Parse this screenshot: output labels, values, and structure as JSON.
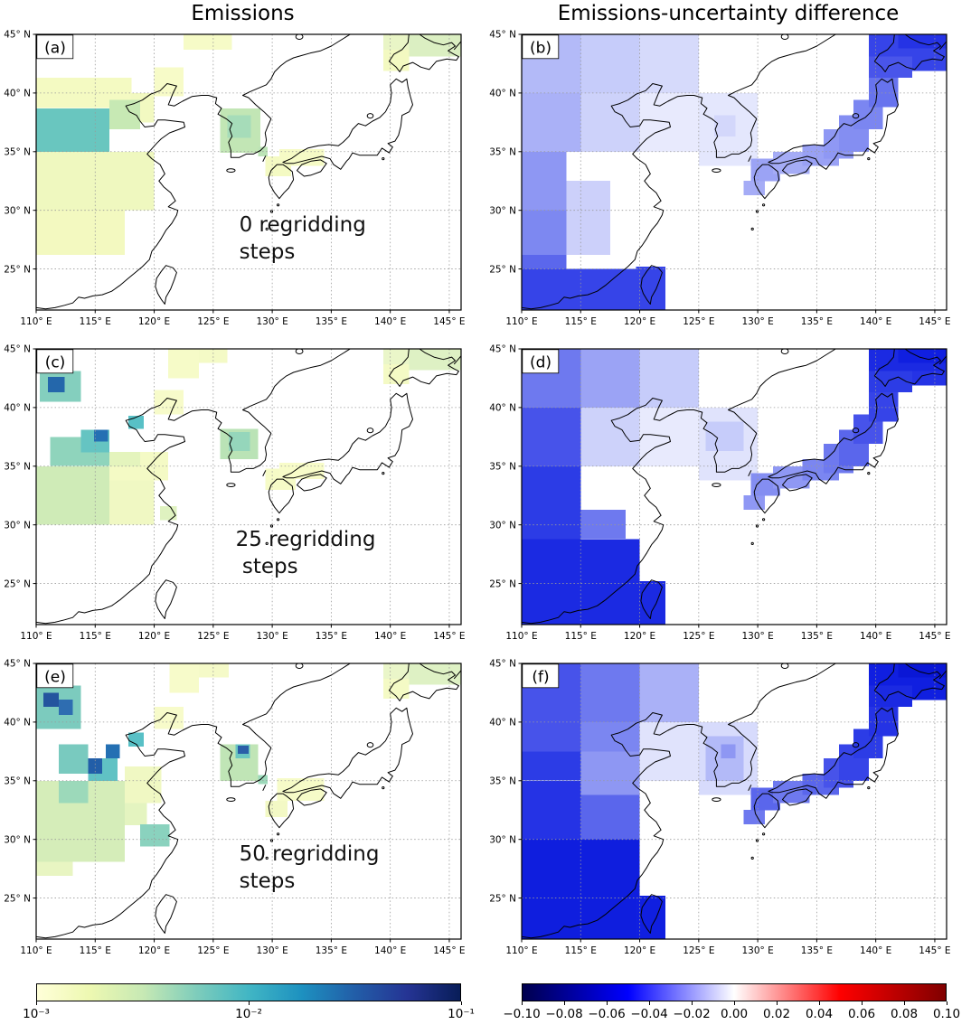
{
  "figure": {
    "titles": {
      "left": "Emissions",
      "right": "Emissions-uncertainty difference"
    }
  },
  "chart_data": {
    "type": "heatmap",
    "subtype": "geographic-gridded-maps",
    "layout": "2 columns x 3 rows of East Asia maps",
    "map_extent": {
      "lon_min": 110,
      "lon_max": 146,
      "lat_min": 21.5,
      "lat_max": 45
    },
    "lon_tick_values": [
      110,
      115,
      120,
      125,
      130,
      135,
      140,
      145
    ],
    "lon_ticks": [
      "110° E",
      "115° E",
      "120° E",
      "125° E",
      "130° E",
      "135° E",
      "140° E",
      "145° E"
    ],
    "lat_tick_values": [
      25,
      30,
      35,
      40,
      45
    ],
    "lat_ticks": [
      "25° N",
      "30° N",
      "35° N",
      "40° N",
      "45° N"
    ],
    "colorbars": {
      "emissions": {
        "scale": "log",
        "ticks": [
          "10⁻³",
          "10⁻²",
          "10⁻¹"
        ],
        "stops": [
          "#ffffd9",
          "#edf8b1",
          "#c7e9b4",
          "#7fcdbb",
          "#41b6c4",
          "#1d91c0",
          "#225ea8",
          "#253494",
          "#081d58"
        ]
      },
      "difference": {
        "scale": "linear",
        "range": [
          -0.1,
          0.1
        ],
        "ticks": [
          "−0.10",
          "−0.08",
          "−0.06",
          "−0.04",
          "−0.02",
          "0.00",
          "0.02",
          "0.04",
          "0.06",
          "0.08",
          "0.10"
        ],
        "stops": [
          "#00004d",
          "#0000ff",
          "#ffffff",
          "#ff0000",
          "#800000"
        ]
      }
    },
    "panels": [
      {
        "label": "(a)",
        "column": "Emissions",
        "annotation": {
          "lines": [
            "0 regridding",
            "steps"
          ],
          "lon": 127.2,
          "lat": 28.2
        },
        "cells": [
          [
            110,
            26.2,
            117.5,
            30,
            "#f3f9c0"
          ],
          [
            110,
            30,
            120,
            35,
            "#eff8bf"
          ],
          [
            110,
            38.7,
            118.1,
            41.3,
            "#f4fac2"
          ],
          [
            118,
            37.5,
            120,
            40,
            "#f2f9c1"
          ],
          [
            120,
            39.7,
            122.5,
            42.2,
            "#f7fbc8"
          ],
          [
            122.5,
            43.7,
            126.6,
            45,
            "#f6fbc7"
          ],
          [
            110,
            35,
            116.2,
            38.7,
            "#69c6bf"
          ],
          [
            116.2,
            36.9,
            118.8,
            39.4,
            "#c7e9b4"
          ],
          [
            125.6,
            34.9,
            129,
            38.7,
            "#c2e6b5"
          ],
          [
            126.2,
            36.2,
            128.2,
            38.1,
            "#a6dcb9"
          ],
          [
            128.8,
            34.6,
            129.6,
            35.4,
            "#bce4b6"
          ],
          [
            129.4,
            32.9,
            131.6,
            34.6,
            "#f4fac3"
          ],
          [
            130.6,
            33.8,
            134.4,
            35.2,
            "#f6fbc6"
          ],
          [
            139.4,
            41.9,
            141.6,
            43.7,
            "#f3f9c1"
          ],
          [
            139.4,
            43.7,
            141.6,
            45,
            "#e9f5c6"
          ],
          [
            141.6,
            43.1,
            146,
            45,
            "#dbefc2"
          ]
        ]
      },
      {
        "label": "(b)",
        "column": "Emissions-uncertainty difference",
        "annotation": null,
        "cells": [
          [
            110,
            40,
            115,
            45,
            "#b3baf8"
          ],
          [
            115,
            40,
            120,
            45,
            "#c6ccfa"
          ],
          [
            120,
            40,
            125,
            45,
            "#d6dafb"
          ],
          [
            110,
            35,
            115,
            40,
            "#aab1f7"
          ],
          [
            115,
            35,
            120,
            40,
            "#cdd2fa"
          ],
          [
            120,
            35,
            125,
            40,
            "#e8eafd"
          ],
          [
            110,
            30,
            113.8,
            35,
            "#8e97f3"
          ],
          [
            110,
            26.2,
            113.8,
            30,
            "#7d88f1"
          ],
          [
            113.8,
            26.2,
            117.5,
            32.5,
            "#ccd0fa"
          ],
          [
            110,
            25,
            113.8,
            26.2,
            "#5b67ec"
          ],
          [
            110,
            21.5,
            121.6,
            25,
            "#3644e8"
          ],
          [
            119.7,
            21.5,
            122.2,
            25.2,
            "#3644e8"
          ],
          [
            125,
            33.8,
            130,
            40,
            "#e4e7fd"
          ],
          [
            126.3,
            36.3,
            128.1,
            38.1,
            "#d3d7fb"
          ],
          [
            128.8,
            31.3,
            130.6,
            32.5,
            "#a5acf6"
          ],
          [
            129.4,
            32.5,
            131.9,
            34.4,
            "#9ba3f5"
          ],
          [
            131.3,
            33.1,
            134.4,
            35,
            "#a5acf6"
          ],
          [
            133.8,
            33.8,
            136.9,
            35.6,
            "#99a1f5"
          ],
          [
            135.6,
            34.4,
            138.1,
            36.9,
            "#8f98f4"
          ],
          [
            136.9,
            35,
            139.4,
            38.1,
            "#848ef2"
          ],
          [
            138.1,
            36.9,
            140.6,
            39.4,
            "#7b86f1"
          ],
          [
            139.4,
            38.8,
            141.9,
            41.3,
            "#6773ee"
          ],
          [
            139.4,
            41.3,
            143.1,
            43.1,
            "#4955ea"
          ],
          [
            143.1,
            41.9,
            146,
            43.1,
            "#3644e8"
          ],
          [
            139.4,
            43.1,
            146,
            45,
            "#3644e8"
          ],
          [
            141.9,
            43.8,
            146,
            45,
            "#2533e5"
          ]
        ]
      },
      {
        "label": "(c)",
        "column": "Emissions",
        "annotation": {
          "lines": [
            "25 regridding",
            " steps"
          ],
          "lon": 126.9,
          "lat": 28.2
        },
        "cells": [
          [
            110,
            30,
            116.2,
            35,
            "#cfebb7"
          ],
          [
            116.2,
            30,
            120,
            33.8,
            "#f0f8c3"
          ],
          [
            116.2,
            33.8,
            121.2,
            36.2,
            "#f4fac5"
          ],
          [
            116.2,
            35,
            118.8,
            36.2,
            "#e4f4bd"
          ],
          [
            120,
            39.4,
            122.5,
            41.5,
            "#f7fbca"
          ],
          [
            121.2,
            42.5,
            123.8,
            45,
            "#f6fbc8"
          ],
          [
            123.8,
            43.8,
            126.2,
            45,
            "#f4fac6"
          ],
          [
            120.5,
            30.4,
            121.9,
            31.6,
            "#dff2c0"
          ],
          [
            110.3,
            40.5,
            113.8,
            43.1,
            "#84cfbe"
          ],
          [
            111,
            41.3,
            112.4,
            42.6,
            "#2467ab"
          ],
          [
            111.2,
            35,
            116.2,
            37.5,
            "#8fd4bc"
          ],
          [
            113.8,
            36.2,
            116.2,
            38.1,
            "#65c4c2"
          ],
          [
            114.9,
            37.1,
            116.1,
            38.1,
            "#2470b3"
          ],
          [
            117.8,
            38.2,
            119.1,
            39.3,
            "#58c0c6"
          ],
          [
            125.6,
            35.6,
            128.8,
            38.2,
            "#bae3b6"
          ],
          [
            126.3,
            36.3,
            128.1,
            37.9,
            "#95d6bb"
          ],
          [
            129.4,
            33,
            132,
            34.8,
            "#f6fbc7"
          ],
          [
            130.6,
            33.9,
            134.4,
            35.3,
            "#f8fcc9"
          ],
          [
            139.4,
            42,
            141.6,
            43.7,
            "#f4fac5"
          ],
          [
            139.4,
            43.7,
            141.6,
            45,
            "#eaf6c9"
          ],
          [
            141.6,
            43.2,
            146,
            45,
            "#def1c4"
          ]
        ]
      },
      {
        "label": "(d)",
        "column": "Emissions-uncertainty difference",
        "annotation": null,
        "cells": [
          [
            110,
            40,
            115,
            45,
            "#6e79ef"
          ],
          [
            115,
            40,
            120,
            45,
            "#9ba3f5"
          ],
          [
            120,
            40,
            125,
            45,
            "#c6ccfa"
          ],
          [
            110,
            35,
            115,
            40,
            "#4753ea"
          ],
          [
            115,
            35,
            120,
            40,
            "#cdd2fa"
          ],
          [
            120,
            35,
            125,
            40,
            "#e8eafd"
          ],
          [
            110,
            28.8,
            115,
            35,
            "#2c3ce6"
          ],
          [
            115,
            28.8,
            118.8,
            31.3,
            "#6e79ef"
          ],
          [
            110,
            21.5,
            120,
            28.8,
            "#1b2ae2"
          ],
          [
            120,
            21.5,
            121.9,
            25,
            "#2c3ce6"
          ],
          [
            119.7,
            21.5,
            122.2,
            25.2,
            "#1b2ae2"
          ],
          [
            125,
            33.8,
            130,
            40,
            "#e0e3fc"
          ],
          [
            125.6,
            36.3,
            128.8,
            38.8,
            "#c6ccfa"
          ],
          [
            128.8,
            31.3,
            130.6,
            32.5,
            "#8f98f4"
          ],
          [
            129.4,
            32.5,
            131.9,
            34.4,
            "#848ef2"
          ],
          [
            131.3,
            33.1,
            134.4,
            35,
            "#8f98f4"
          ],
          [
            133.8,
            33.8,
            136.9,
            35.6,
            "#7b86f1"
          ],
          [
            135.6,
            34.4,
            138.1,
            36.9,
            "#6e79ef"
          ],
          [
            136.9,
            35,
            139.4,
            38.1,
            "#5a66ec"
          ],
          [
            138.1,
            36.9,
            140.6,
            39.4,
            "#4753ea"
          ],
          [
            139.4,
            38.8,
            141.9,
            41.3,
            "#3644e8"
          ],
          [
            139.4,
            41.3,
            143.1,
            43.1,
            "#2c3ce6"
          ],
          [
            143.1,
            41.9,
            146,
            43.1,
            "#2533e5"
          ],
          [
            139.4,
            43.1,
            146,
            45,
            "#1b2ae2"
          ],
          [
            141.9,
            43.8,
            146,
            45,
            "#101fe0"
          ]
        ]
      },
      {
        "label": "(e)",
        "column": "Emissions",
        "annotation": {
          "lines": [
            "50 regridding",
            "steps"
          ],
          "lon": 127.2,
          "lat": 28.2
        },
        "cells": [
          [
            110,
            26.9,
            113.1,
            28.1,
            "#e8f5c2"
          ],
          [
            110,
            28.1,
            117.5,
            35,
            "#d5edb9"
          ],
          [
            117.5,
            31.2,
            119.4,
            33.1,
            "#e4f4c0"
          ],
          [
            117.5,
            33.1,
            120.6,
            36.2,
            "#f0f8c3"
          ],
          [
            111.9,
            33.1,
            114.4,
            35,
            "#9cd9ba"
          ],
          [
            111.9,
            35.6,
            114.4,
            38.1,
            "#79cabf"
          ],
          [
            114.4,
            35,
            116.9,
            36.9,
            "#60c2c4"
          ],
          [
            114.4,
            35.6,
            115.6,
            36.9,
            "#225ea8"
          ],
          [
            115.9,
            36.9,
            117.1,
            38.1,
            "#2470b3"
          ],
          [
            117.8,
            37.9,
            119.1,
            39.1,
            "#58c0c6"
          ],
          [
            110,
            39.4,
            113.8,
            43.1,
            "#7ccbbe"
          ],
          [
            110.6,
            41.3,
            111.9,
            42.5,
            "#24549e"
          ],
          [
            111.9,
            40.6,
            113.1,
            41.9,
            "#2e6db1"
          ],
          [
            118.8,
            29.4,
            121.3,
            31.3,
            "#8ad2be"
          ],
          [
            120,
            39.4,
            122.5,
            41.3,
            "#f7fbca"
          ],
          [
            121.3,
            42.5,
            123.8,
            45,
            "#f7fbca"
          ],
          [
            123.8,
            43.8,
            126.3,
            45,
            "#f5fac8"
          ],
          [
            125.6,
            35,
            128.8,
            38.1,
            "#c0e5b6"
          ],
          [
            126.9,
            36.9,
            128.1,
            38.1,
            "#6ac6c1"
          ],
          [
            127.1,
            37.3,
            128,
            38,
            "#2a5ea8"
          ],
          [
            128.8,
            34.7,
            129.6,
            35.5,
            "#9cd9ba"
          ],
          [
            129.4,
            32.4,
            130.4,
            33.3,
            "#8ad2be"
          ],
          [
            129.4,
            31.9,
            131.3,
            33.3,
            "#f3f9c5"
          ],
          [
            130.4,
            33.3,
            134.4,
            35.2,
            "#f6fbc8"
          ],
          [
            139.4,
            42,
            141.6,
            43.7,
            "#f4fac5"
          ],
          [
            139.4,
            43.7,
            141.6,
            45,
            "#eaf6c9"
          ],
          [
            141.6,
            43.2,
            146,
            45,
            "#def1c4"
          ]
        ]
      },
      {
        "label": "(f)",
        "column": "Emissions-uncertainty difference",
        "annotation": null,
        "cells": [
          [
            110,
            37.5,
            115,
            45,
            "#4753ea"
          ],
          [
            115,
            40,
            120,
            45,
            "#6e79ef"
          ],
          [
            120,
            40,
            125,
            45,
            "#aab1f7"
          ],
          [
            110,
            35,
            115,
            37.5,
            "#2c3ce6"
          ],
          [
            115,
            37.5,
            120,
            40,
            "#7b86f1"
          ],
          [
            115,
            33.8,
            120,
            37.5,
            "#8e97f3"
          ],
          [
            120,
            35,
            125,
            40,
            "#e0e3fc"
          ],
          [
            110,
            30,
            115,
            35,
            "#2533e5"
          ],
          [
            115,
            30,
            120,
            33.8,
            "#5a66ec"
          ],
          [
            110,
            21.5,
            120,
            30,
            "#0f1ede"
          ],
          [
            120,
            21.5,
            121.9,
            25,
            "#1b2ae2"
          ],
          [
            119.7,
            21.5,
            122.2,
            25.2,
            "#101fe0"
          ],
          [
            125,
            33.8,
            130,
            40,
            "#d7dbfc"
          ],
          [
            125.6,
            35,
            128.8,
            38.8,
            "#b3baf8"
          ],
          [
            126.9,
            36.9,
            128.1,
            38.1,
            "#8e97f3"
          ],
          [
            128.8,
            31.3,
            130.6,
            32.5,
            "#6e79ef"
          ],
          [
            129.4,
            32.5,
            131.9,
            34.4,
            "#5a66ec"
          ],
          [
            131.3,
            33.1,
            134.4,
            35,
            "#6e79ef"
          ],
          [
            133.8,
            33.8,
            136.9,
            35.6,
            "#5a66ec"
          ],
          [
            135.6,
            34.4,
            138.1,
            36.9,
            "#4753ea"
          ],
          [
            136.9,
            35,
            139.4,
            38.1,
            "#3644e8"
          ],
          [
            138.1,
            36.9,
            140.6,
            39.4,
            "#2c3ce6"
          ],
          [
            139.4,
            38.8,
            141.9,
            41.3,
            "#2533e5"
          ],
          [
            139.4,
            41.3,
            143.1,
            43.1,
            "#1b2ae2"
          ],
          [
            143.1,
            41.9,
            146,
            43.1,
            "#101fe0"
          ],
          [
            139.4,
            43.1,
            146,
            45,
            "#101fe0"
          ],
          [
            141.9,
            43.8,
            146,
            45,
            "#0a17d6"
          ]
        ]
      }
    ]
  }
}
